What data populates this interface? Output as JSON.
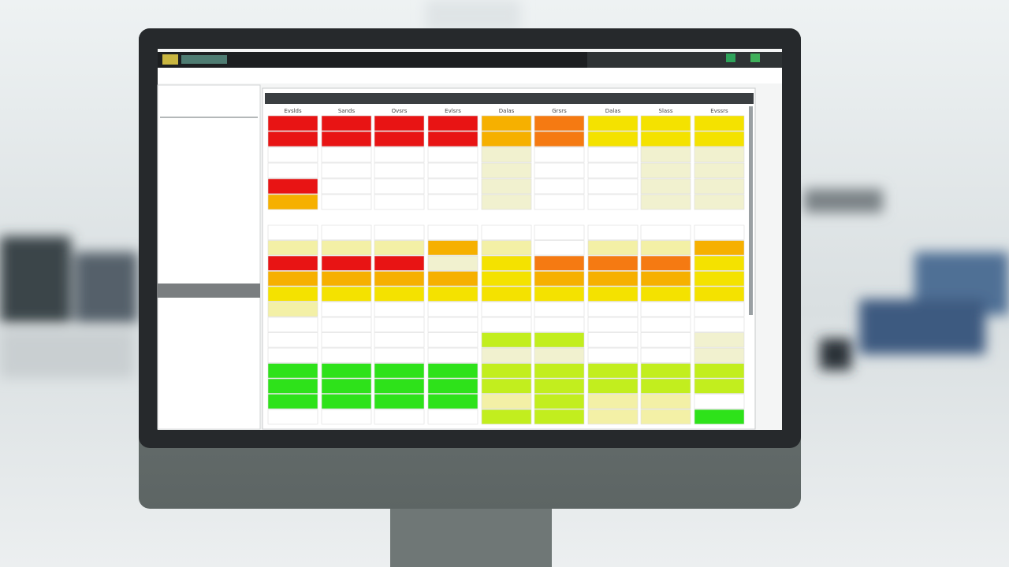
{
  "screen": {
    "columns": [
      "Evslds",
      "Sands",
      "Ovsrs",
      "Evlsrs",
      "Dalas",
      "Grsrs",
      "Dalas",
      "Slass",
      "Evssrs"
    ],
    "palette": {
      "R": "#e81414",
      "O": "#f6b000",
      "D": "#f57a12",
      "Y": "#f4e200",
      "y": "#f3f0a6",
      "P": "#f1f1cf",
      "L": "#c2ee1e",
      "G": "#2ee21a",
      "W": "#ffffff"
    },
    "blocks": [
      [
        "RRRRODYYY",
        "RRRRODYYY",
        "WWWWPWWPP",
        "WWWWPWWPP",
        "RWWWPWWPP",
        "OWWWPWWPP"
      ],
      [
        "WWWWWWWWW",
        "yyyOyWyyO",
        "RRRPYDDDY",
        "OOOOYOOOY",
        "YYYYYYYYY",
        "yWWWWWWWW",
        "WWWWWWWWW",
        "WWWWLLWWP",
        "WWWWPPWWP",
        "GGGGLLLLL",
        "GGGGLLLLL",
        "GGGGyLyyW",
        "WWWWLLyyG"
      ]
    ]
  }
}
